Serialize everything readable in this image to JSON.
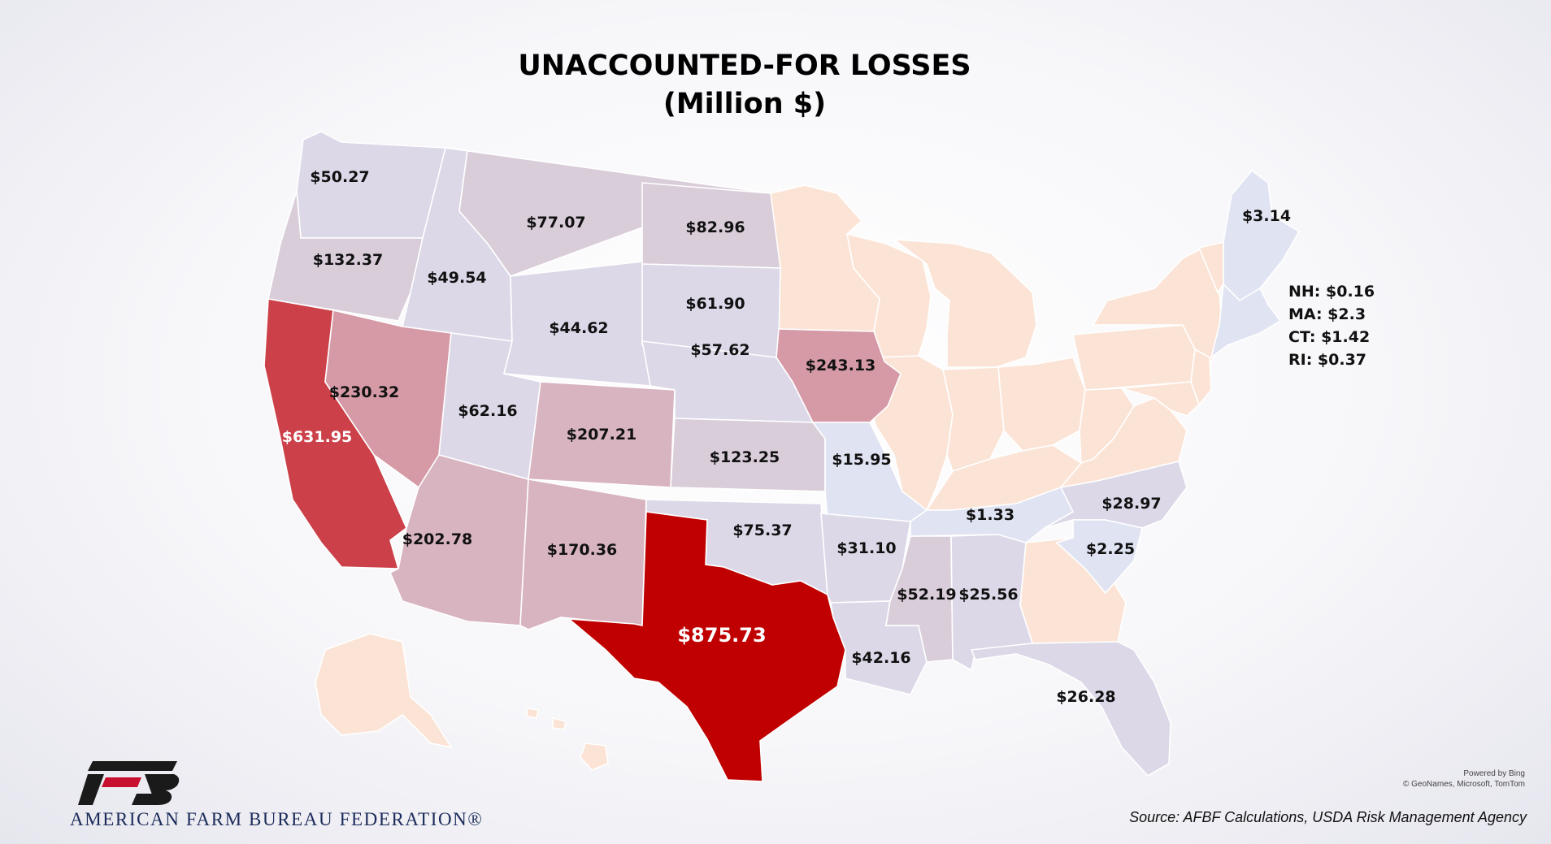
{
  "title": {
    "line1": "UNACCOUNTED-FOR LOSSES",
    "line2": "(Million $)"
  },
  "legend_note": {
    "nh": "NH: $0.16",
    "ma": "MA: $2.3",
    "ct": "CT: $1.42",
    "ri": "RI: $0.37"
  },
  "bing": {
    "powered": "Powered by Bing",
    "credit": "© GeoNames, Microsoft, TomTom"
  },
  "source": "Source: AFBF Calculations, USDA Risk Management Agency",
  "org": {
    "name": "AMERICAN FARM BUREAU FEDERATION®",
    "logo_letters": "FB"
  },
  "colors": {
    "no_data": "#fbe4d6",
    "lowest": "#dfe3f2",
    "low": "#dcd8e8",
    "mid_low": "#d9cdd9",
    "mid": "#d8b4c0",
    "mid_high": "#d59aa6",
    "high": "#cc4049",
    "highest": "#c00000",
    "brand_red": "#c8102e",
    "brand_navy": "#1b2b5a"
  },
  "states": [
    {
      "id": "WA",
      "label": "$50.27",
      "value": 50.27
    },
    {
      "id": "OR",
      "label": "$132.37",
      "value": 132.37
    },
    {
      "id": "CA",
      "label": "$631.95",
      "value": 631.95
    },
    {
      "id": "ID",
      "label": "$49.54",
      "value": 49.54
    },
    {
      "id": "NV",
      "label": "$230.32",
      "value": 230.32
    },
    {
      "id": "MT",
      "label": "$77.07",
      "value": 77.07
    },
    {
      "id": "WY",
      "label": "$44.62",
      "value": 44.62
    },
    {
      "id": "UT",
      "label": "$62.16",
      "value": 62.16
    },
    {
      "id": "AZ",
      "label": "$202.78",
      "value": 202.78
    },
    {
      "id": "CO",
      "label": "$207.21",
      "value": 207.21
    },
    {
      "id": "NM",
      "label": "$170.36",
      "value": 170.36
    },
    {
      "id": "ND",
      "label": "$82.96",
      "value": 82.96
    },
    {
      "id": "SD",
      "label": "$61.90",
      "value": 61.9
    },
    {
      "id": "NE",
      "label": "$57.62",
      "value": 57.62
    },
    {
      "id": "KS",
      "label": "$123.25",
      "value": 123.25
    },
    {
      "id": "OK",
      "label": "$75.37",
      "value": 75.37
    },
    {
      "id": "TX",
      "label": "$875.73",
      "value": 875.73
    },
    {
      "id": "IA",
      "label": "$243.13",
      "value": 243.13
    },
    {
      "id": "MO",
      "label": "$15.95",
      "value": 15.95
    },
    {
      "id": "AR",
      "label": "$31.10",
      "value": 31.1
    },
    {
      "id": "LA",
      "label": "$42.16",
      "value": 42.16
    },
    {
      "id": "MS",
      "label": "$52.19",
      "value": 52.19
    },
    {
      "id": "AL",
      "label": "$25.56",
      "value": 25.56
    },
    {
      "id": "TN",
      "label": "$1.33",
      "value": 1.33
    },
    {
      "id": "NC",
      "label": "$28.97",
      "value": 28.97
    },
    {
      "id": "SC",
      "label": "$2.25",
      "value": 2.25
    },
    {
      "id": "FL",
      "label": "$26.28",
      "value": 26.28
    },
    {
      "id": "ME",
      "label": "$3.14",
      "value": 3.14
    }
  ]
}
